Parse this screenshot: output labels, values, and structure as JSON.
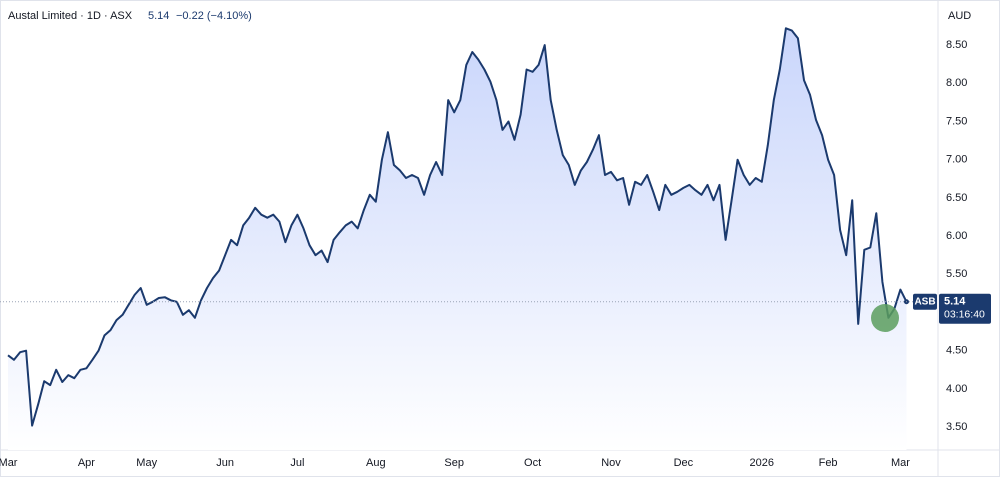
{
  "chart_data": {
    "type": "area",
    "title": "Austal Limited · 1D · ASX",
    "price": 5.14,
    "change": "−0.22 (−4.10%)",
    "currency": "AUD",
    "symbol": "ASB",
    "countdown": "03:16:40",
    "color": "#1b3a6e",
    "fill_color": "#c7d4fb",
    "grid": false,
    "ylim": [
      3.2,
      9.09
    ],
    "yticks": [
      {
        "value": 3.5,
        "label": "3.50"
      },
      {
        "value": 4,
        "label": "4.00"
      },
      {
        "value": 4.5,
        "label": "4.50"
      },
      {
        "value": 5,
        "label": "5.00"
      },
      {
        "value": 5.5,
        "label": "5.50"
      },
      {
        "value": 6,
        "label": "6.00"
      },
      {
        "value": 6.5,
        "label": "6.50"
      },
      {
        "value": 7,
        "label": "7.00"
      },
      {
        "value": 7.5,
        "label": "7.50"
      },
      {
        "value": 8,
        "label": "8.00"
      },
      {
        "value": 8.5,
        "label": "8.50"
      }
    ],
    "categories": [
      "Mar",
      null,
      null,
      null,
      null,
      null,
      null,
      null,
      null,
      null,
      null,
      null,
      null,
      "Apr",
      null,
      null,
      null,
      null,
      null,
      null,
      null,
      null,
      null,
      "May",
      null,
      null,
      null,
      null,
      null,
      null,
      null,
      null,
      null,
      null,
      null,
      null,
      "Jun",
      null,
      null,
      null,
      null,
      null,
      null,
      null,
      null,
      null,
      null,
      null,
      "Jul",
      null,
      null,
      null,
      null,
      null,
      null,
      null,
      null,
      null,
      null,
      null,
      null,
      "Aug",
      null,
      null,
      null,
      null,
      null,
      null,
      null,
      null,
      null,
      null,
      null,
      null,
      "Sep",
      null,
      null,
      null,
      null,
      null,
      null,
      null,
      null,
      null,
      null,
      null,
      null,
      "Oct",
      null,
      null,
      null,
      null,
      null,
      null,
      null,
      null,
      null,
      null,
      null,
      null,
      "Nov",
      null,
      null,
      null,
      null,
      null,
      null,
      null,
      null,
      null,
      null,
      null,
      "Dec",
      null,
      null,
      null,
      null,
      null,
      null,
      null,
      null,
      null,
      null,
      null,
      null,
      "2026",
      null,
      null,
      null,
      null,
      null,
      null,
      null,
      null,
      null,
      null,
      "Feb",
      null,
      null,
      null,
      null,
      null,
      null,
      null,
      null,
      null,
      null,
      null,
      "Mar",
      null
    ],
    "values": [
      4.44,
      4.38,
      4.48,
      4.5,
      3.52,
      3.8,
      4.1,
      4.05,
      4.25,
      4.09,
      4.18,
      4.14,
      4.25,
      4.27,
      4.38,
      4.5,
      4.7,
      4.77,
      4.9,
      4.97,
      5.1,
      5.23,
      5.32,
      5.1,
      5.14,
      5.19,
      5.2,
      5.16,
      5.14,
      4.97,
      5.03,
      4.93,
      5.16,
      5.32,
      5.45,
      5.55,
      5.75,
      5.95,
      5.88,
      6.14,
      6.24,
      6.37,
      6.28,
      6.24,
      6.28,
      6.19,
      5.92,
      6.14,
      6.28,
      6.1,
      5.88,
      5.75,
      5.81,
      5.66,
      5.95,
      6.05,
      6.14,
      6.19,
      6.1,
      6.34,
      6.54,
      6.45,
      7.0,
      7.36,
      6.93,
      6.86,
      6.76,
      6.8,
      6.76,
      6.54,
      6.8,
      6.97,
      6.8,
      7.78,
      7.62,
      7.78,
      8.24,
      8.41,
      8.31,
      8.18,
      8.02,
      7.78,
      7.39,
      7.5,
      7.26,
      7.59,
      8.18,
      8.15,
      8.24,
      8.5,
      7.78,
      7.39,
      7.06,
      6.93,
      6.67,
      6.86,
      6.97,
      7.13,
      7.32,
      6.8,
      6.84,
      6.73,
      6.76,
      6.41,
      6.71,
      6.67,
      6.8,
      6.58,
      6.34,
      6.67,
      6.54,
      6.58,
      6.63,
      6.67,
      6.6,
      6.54,
      6.67,
      6.47,
      6.67,
      5.95,
      6.47,
      7.0,
      6.8,
      6.67,
      6.76,
      6.71,
      7.19,
      7.78,
      8.18,
      8.72,
      8.69,
      8.59,
      8.04,
      7.85,
      7.52,
      7.32,
      7.0,
      6.8,
      6.08,
      5.75,
      6.47,
      4.85,
      5.82,
      5.85,
      6.3,
      5.4,
      4.93,
      5.05,
      5.3,
      5.14
    ]
  }
}
